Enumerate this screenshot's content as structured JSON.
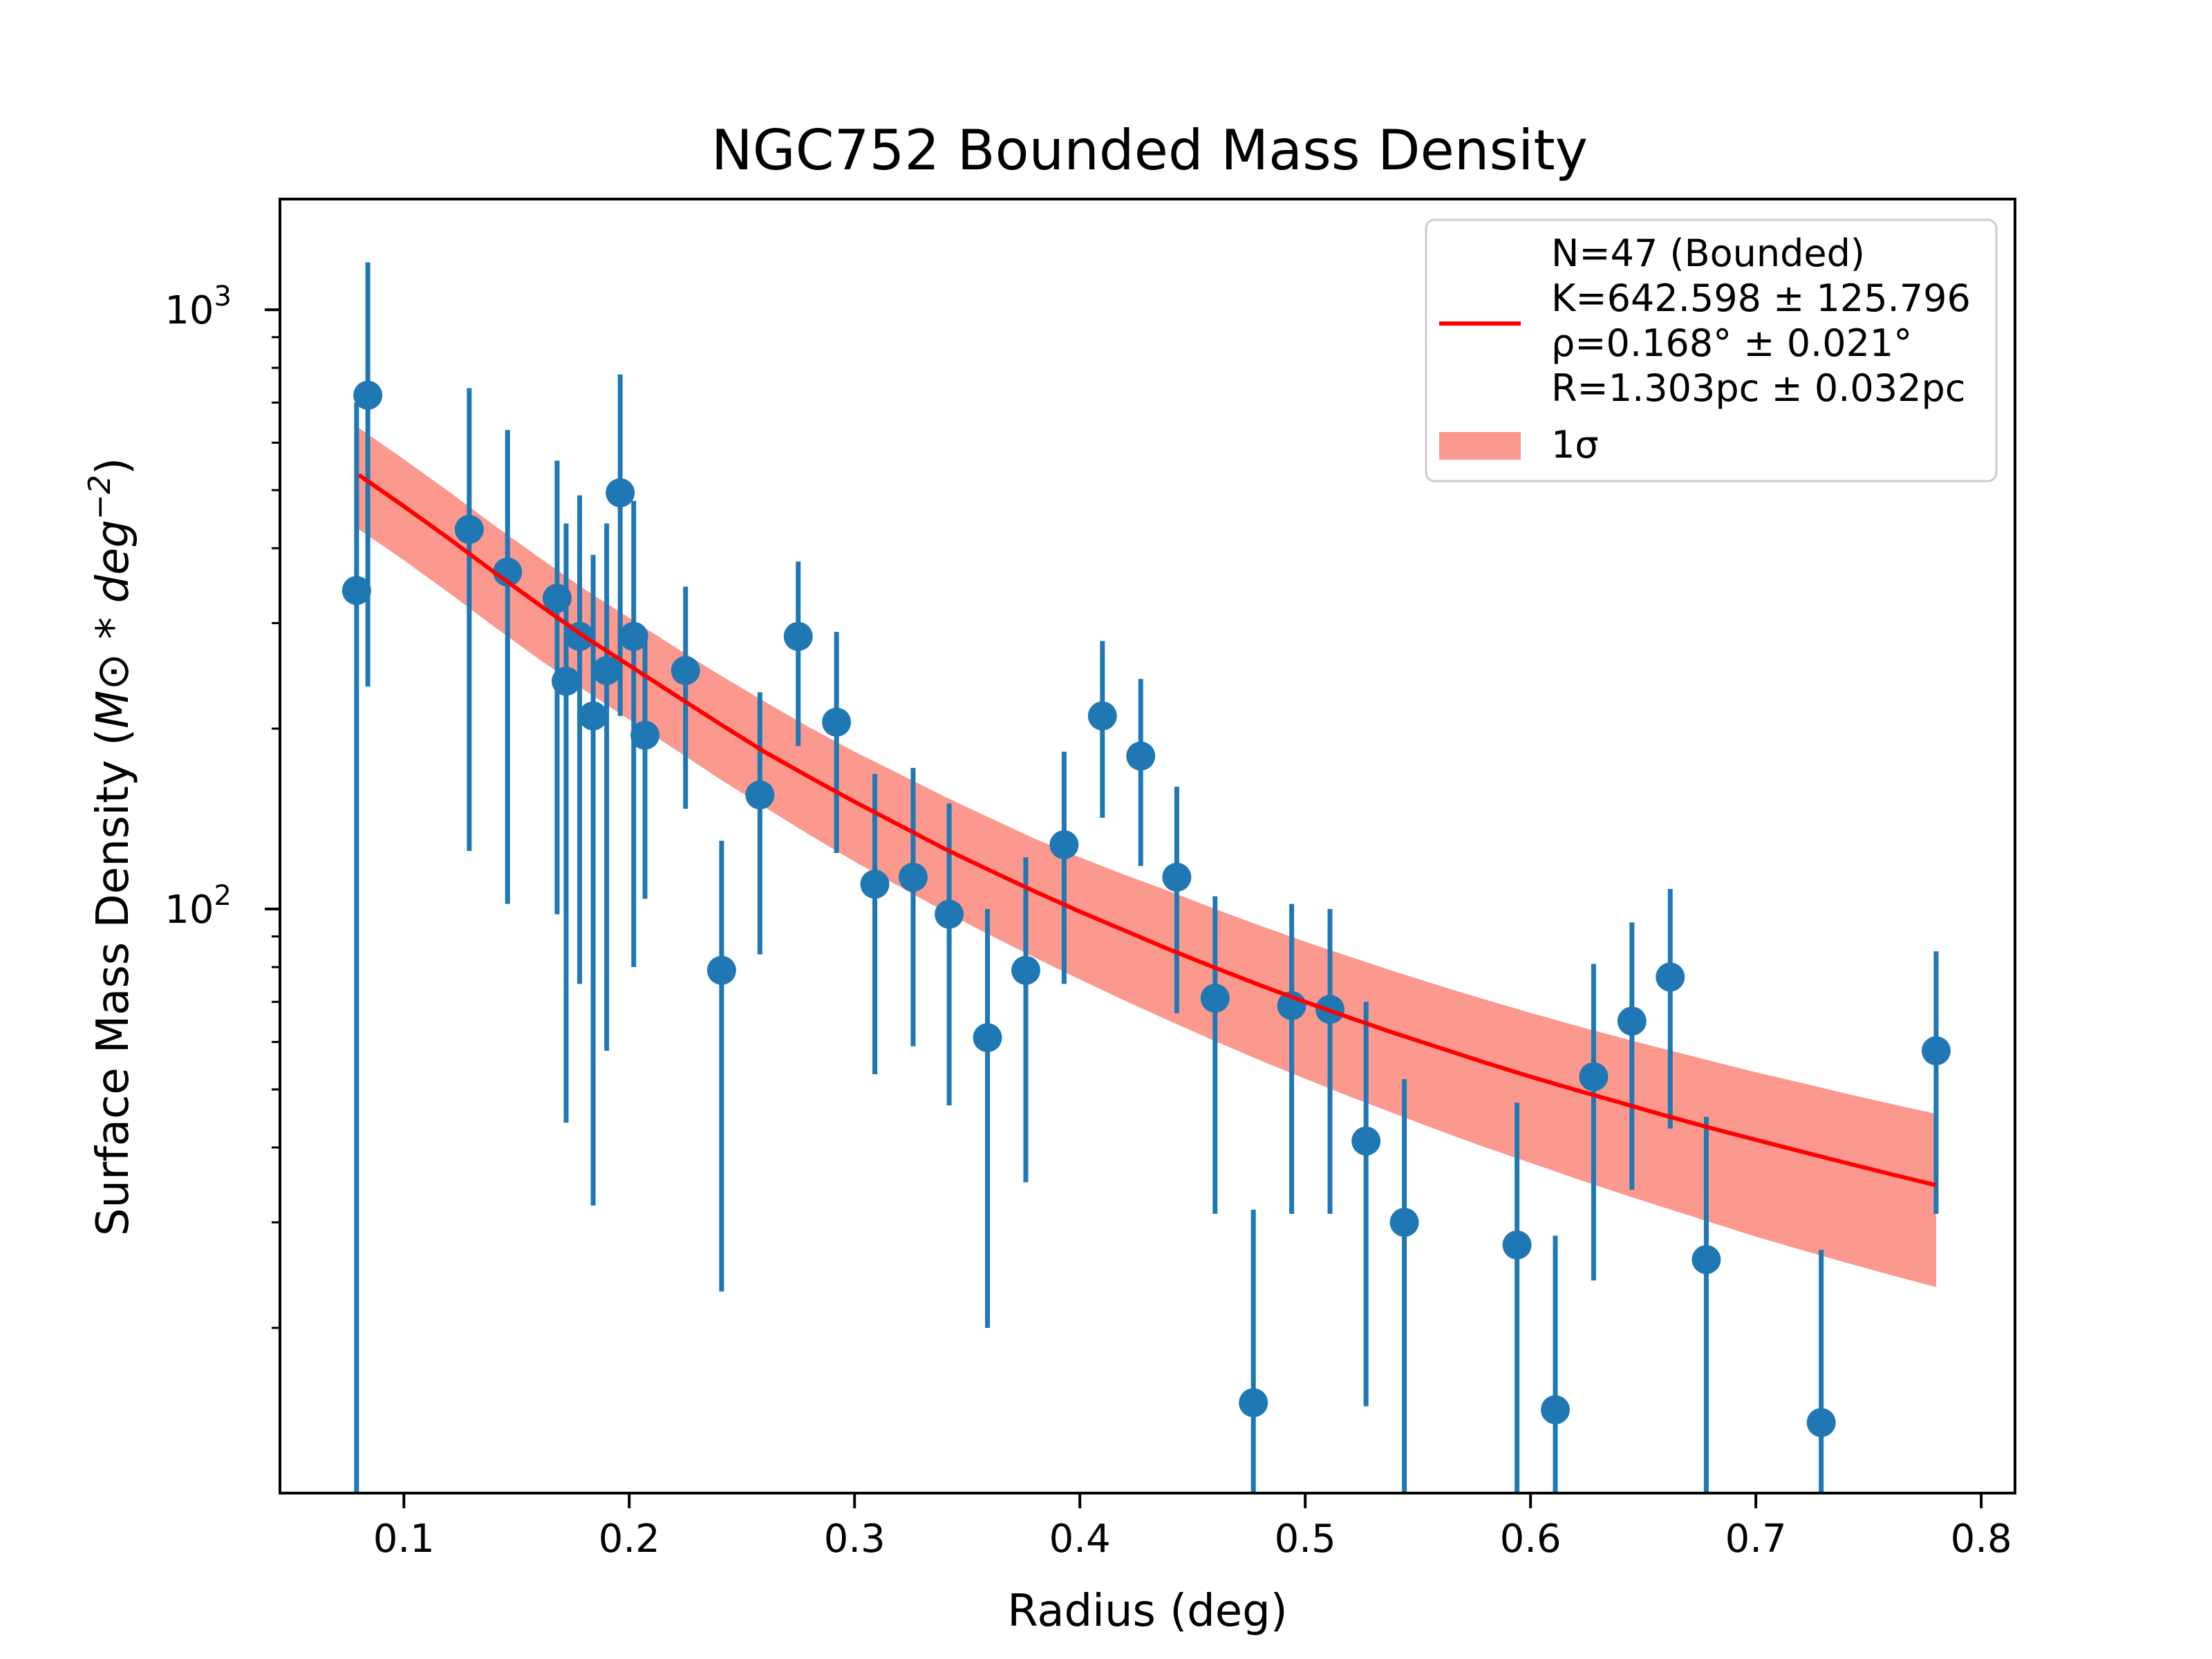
{
  "chart_data": {
    "type": "scatter",
    "title": "NGC752 Bounded Mass Density",
    "xlabel": "Radius (deg)",
    "ylabel_prefix": "Surface Mass Density (",
    "ylabel_math": "M⊙ * deg",
    "ylabel_exp": "−2",
    "ylabel_suffix": ")",
    "xlim": [
      0.045,
      0.815
    ],
    "ylim": [
      10.6,
      1530
    ],
    "yscale": "log",
    "grid": false,
    "legend_position": "top-right",
    "x_ticks": [
      {
        "value": 0.1,
        "label": "0.1"
      },
      {
        "value": 0.2,
        "label": "0.2"
      },
      {
        "value": 0.3,
        "label": "0.3"
      },
      {
        "value": 0.4,
        "label": "0.4"
      },
      {
        "value": 0.5,
        "label": "0.5"
      },
      {
        "value": 0.6,
        "label": "0.6"
      },
      {
        "value": 0.7,
        "label": "0.7"
      },
      {
        "value": 0.8,
        "label": "0.8"
      }
    ],
    "y_major_ticks": [
      {
        "value": 100,
        "base": "10",
        "exp": "2"
      },
      {
        "value": 1000,
        "base": "10",
        "exp": "3"
      }
    ],
    "y_minor_ticks": [
      20,
      30,
      40,
      50,
      60,
      70,
      80,
      90,
      200,
      300,
      400,
      500,
      600,
      700,
      800,
      900
    ],
    "colors": {
      "points": "#1f77b4",
      "fit_line": "#ff0000",
      "band": "#fa8072"
    },
    "legend": {
      "fit_lines": [
        "N=47 (Bounded)",
        "K=642.598 ± 125.796",
        "ρ=0.168° ± 0.021°",
        "R=1.303pc ± 0.032pc"
      ],
      "band_label_sym": "1σ"
    },
    "fit": {
      "x": [
        0.08,
        0.1,
        0.12,
        0.14,
        0.16,
        0.18,
        0.2,
        0.22,
        0.24,
        0.26,
        0.28,
        0.3,
        0.32,
        0.34,
        0.36,
        0.38,
        0.4,
        0.42,
        0.44,
        0.46,
        0.48,
        0.5,
        0.52,
        0.54,
        0.56,
        0.58,
        0.6,
        0.62,
        0.64,
        0.66,
        0.68,
        0.7,
        0.72,
        0.74,
        0.76,
        0.78
      ],
      "y": [
        530,
        470,
        415,
        365,
        322,
        285,
        255,
        228,
        204,
        183,
        166,
        151,
        138,
        126,
        116,
        107,
        99,
        92,
        85.5,
        79.8,
        74.6,
        70,
        65.8,
        62,
        58.6,
        55.4,
        52.5,
        49.9,
        47.5,
        45.2,
        43.1,
        41.2,
        39.4,
        37.7,
        36.1,
        34.6
      ],
      "upper": [
        635,
        563,
        497,
        437,
        386,
        342,
        306,
        274,
        246,
        222,
        201,
        183,
        168,
        154,
        142,
        131,
        122,
        114,
        107,
        100,
        93.8,
        88.2,
        83.2,
        78.6,
        74.4,
        70.6,
        67.1,
        63.9,
        61,
        58.3,
        55.8,
        53.4,
        51.3,
        49.2,
        47.3,
        45.5
      ],
      "lower": [
        430,
        382,
        337,
        296,
        261,
        232,
        207,
        185,
        165,
        148,
        133,
        120,
        109,
        99,
        90.5,
        83,
        76.3,
        70.3,
        65,
        60.2,
        55.9,
        52.1,
        48.6,
        45.5,
        42.6,
        40,
        37.7,
        35.5,
        33.5,
        31.7,
        30,
        28.4,
        27,
        25.7,
        24.5,
        23.4
      ]
    },
    "points": [
      {
        "x": 0.079,
        "y": 340,
        "lo": 10.6,
        "hi": 700
      },
      {
        "x": 0.084,
        "y": 720,
        "lo": 235,
        "hi": 1200
      },
      {
        "x": 0.129,
        "y": 430,
        "lo": 125,
        "hi": 740
      },
      {
        "x": 0.146,
        "y": 365,
        "lo": 102,
        "hi": 630
      },
      {
        "x": 0.168,
        "y": 330,
        "lo": 98,
        "hi": 560
      },
      {
        "x": 0.172,
        "y": 240,
        "lo": 44,
        "hi": 440
      },
      {
        "x": 0.178,
        "y": 285,
        "lo": 75,
        "hi": 490
      },
      {
        "x": 0.184,
        "y": 210,
        "lo": 32,
        "hi": 390
      },
      {
        "x": 0.19,
        "y": 250,
        "lo": 58,
        "hi": 440
      },
      {
        "x": 0.196,
        "y": 495,
        "lo": 210,
        "hi": 780
      },
      {
        "x": 0.202,
        "y": 285,
        "lo": 80,
        "hi": 480
      },
      {
        "x": 0.207,
        "y": 195,
        "lo": 104,
        "hi": 290
      },
      {
        "x": 0.225,
        "y": 250,
        "lo": 147,
        "hi": 345
      },
      {
        "x": 0.241,
        "y": 79,
        "lo": 23,
        "hi": 130
      },
      {
        "x": 0.258,
        "y": 155,
        "lo": 84,
        "hi": 230
      },
      {
        "x": 0.275,
        "y": 285,
        "lo": 187,
        "hi": 380
      },
      {
        "x": 0.292,
        "y": 205,
        "lo": 124,
        "hi": 290
      },
      {
        "x": 0.309,
        "y": 110,
        "lo": 53,
        "hi": 168
      },
      {
        "x": 0.326,
        "y": 113,
        "lo": 59,
        "hi": 172
      },
      {
        "x": 0.342,
        "y": 98,
        "lo": 47,
        "hi": 150
      },
      {
        "x": 0.359,
        "y": 61,
        "lo": 20,
        "hi": 100
      },
      {
        "x": 0.376,
        "y": 79,
        "lo": 35,
        "hi": 122
      },
      {
        "x": 0.393,
        "y": 128,
        "lo": 75,
        "hi": 183
      },
      {
        "x": 0.41,
        "y": 210,
        "lo": 142,
        "hi": 280
      },
      {
        "x": 0.427,
        "y": 180,
        "lo": 118,
        "hi": 242
      },
      {
        "x": 0.443,
        "y": 113,
        "lo": 67,
        "hi": 160
      },
      {
        "x": 0.46,
        "y": 71,
        "lo": 31,
        "hi": 105
      },
      {
        "x": 0.477,
        "y": 15,
        "lo": 10.6,
        "hi": 31.5
      },
      {
        "x": 0.494,
        "y": 69,
        "lo": 31,
        "hi": 102
      },
      {
        "x": 0.511,
        "y": 68,
        "lo": 31,
        "hi": 100
      },
      {
        "x": 0.527,
        "y": 41,
        "lo": 14.8,
        "hi": 70
      },
      {
        "x": 0.544,
        "y": 30,
        "lo": 10.6,
        "hi": 52
      },
      {
        "x": 0.594,
        "y": 27.5,
        "lo": 10.6,
        "hi": 47.5
      },
      {
        "x": 0.611,
        "y": 14.6,
        "lo": 10.6,
        "hi": 28.5
      },
      {
        "x": 0.628,
        "y": 52.5,
        "lo": 24,
        "hi": 81
      },
      {
        "x": 0.645,
        "y": 65,
        "lo": 34,
        "hi": 95
      },
      {
        "x": 0.662,
        "y": 77,
        "lo": 43,
        "hi": 108
      },
      {
        "x": 0.678,
        "y": 26,
        "lo": 10.6,
        "hi": 45
      },
      {
        "x": 0.729,
        "y": 13.9,
        "lo": 10.6,
        "hi": 27
      },
      {
        "x": 0.78,
        "y": 58,
        "lo": 31,
        "hi": 85
      }
    ]
  }
}
